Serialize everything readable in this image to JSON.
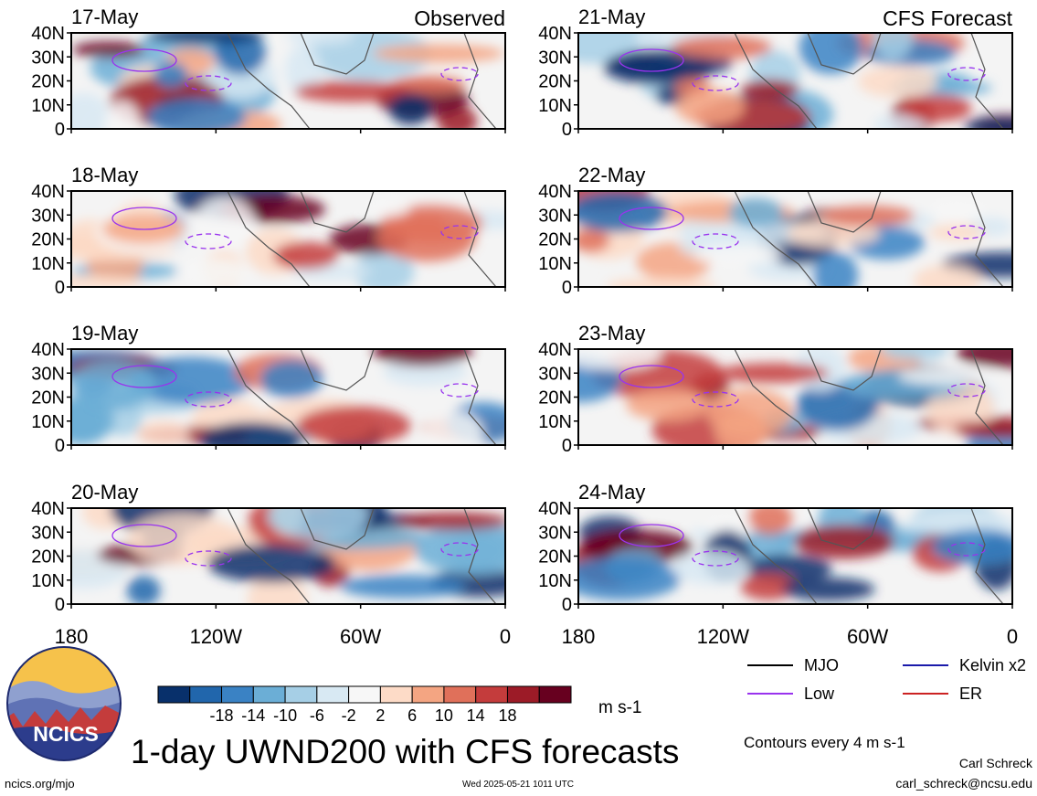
{
  "column_headers": [
    "Observed",
    "CFS Forecast"
  ],
  "chart_data": {
    "type": "heatmap",
    "title": "1-day UWND200 with CFS forecasts",
    "variable": "UWND200",
    "units": "m s-1",
    "x_axis": {
      "ticks": [
        "180",
        "120W",
        "60W",
        "0"
      ],
      "range": [
        -180,
        0
      ]
    },
    "y_axis": {
      "ticks": [
        "0",
        "10N",
        "20N",
        "30N",
        "40N"
      ],
      "range": [
        0,
        40
      ]
    },
    "colorbar": {
      "labels": [
        "-18",
        "-14",
        "-10",
        "-6",
        "-2",
        "2",
        "6",
        "10",
        "14",
        "18"
      ],
      "colors": [
        "#08306b",
        "#2166ac",
        "#3a82c4",
        "#6baed6",
        "#a6cfe6",
        "#d8e9f3",
        "#f7f7f7",
        "#fddbc7",
        "#f4a582",
        "#e0705a",
        "#c43c3c",
        "#9c1b27",
        "#67001f"
      ]
    },
    "panels": [
      {
        "date": "17-May",
        "column": "Observed"
      },
      {
        "date": "18-May",
        "column": "Observed"
      },
      {
        "date": "19-May",
        "column": "Observed"
      },
      {
        "date": "20-May",
        "column": "Observed"
      },
      {
        "date": "21-May",
        "column": "CFS Forecast"
      },
      {
        "date": "22-May",
        "column": "CFS Forecast"
      },
      {
        "date": "23-May",
        "column": "CFS Forecast"
      },
      {
        "date": "24-May",
        "column": "CFS Forecast"
      }
    ],
    "legend": [
      {
        "label": "MJO",
        "color": "#000000"
      },
      {
        "label": "Kelvin x2",
        "color": "#1a1aaa"
      },
      {
        "label": "Low",
        "color": "#9933ee"
      },
      {
        "label": "ER",
        "color": "#cc2222"
      }
    ],
    "contour_note": "Contours every 4 m s-1"
  },
  "logo_text": "NCICS",
  "footer": {
    "left": "ncics.org/mjo",
    "center": "Wed 2025-05-21 1011 UTC",
    "author": "Carl Schreck",
    "email": "carl_schreck@ncsu.edu"
  }
}
